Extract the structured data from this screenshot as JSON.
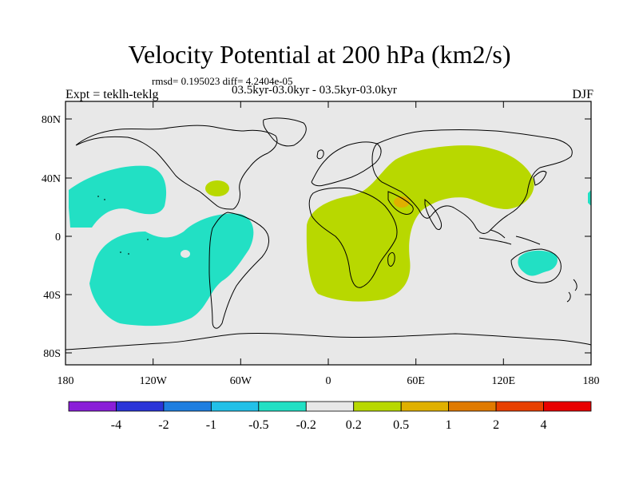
{
  "title": "Velocity Potential at 200 hPa (km2/s)",
  "stats": "rmsd= 0.195023 diff= 4.2404e-05",
  "subtitle": "03.5kyr-03.0kyr - 03.5kyr-03.0kyr",
  "experiment": "Expt = teklh-teklg",
  "season": "DJF",
  "lat_ticks": [
    "80N",
    "40N",
    "0",
    "40S",
    "80S"
  ],
  "lon_ticks": [
    "180",
    "120W",
    "60W",
    "0",
    "60E",
    "120E",
    "180"
  ],
  "colorbar": {
    "labels": [
      "-4",
      "-2",
      "-1",
      "-0.5",
      "-0.2",
      "0.2",
      "0.5",
      "1",
      "2",
      "4"
    ],
    "colors": [
      "#8a1ed8",
      "#2a35d8",
      "#1e7ee0",
      "#22c0e8",
      "#22e0c4",
      "#e8e8e8",
      "#b8d800",
      "#e0b000",
      "#e07a00",
      "#e84000",
      "#e80000"
    ]
  },
  "map": {
    "background_color": "#e8e8e8",
    "negative_color": "#22e0c4",
    "positive_color": "#b8d800",
    "peak_color": "#e0b000"
  }
}
